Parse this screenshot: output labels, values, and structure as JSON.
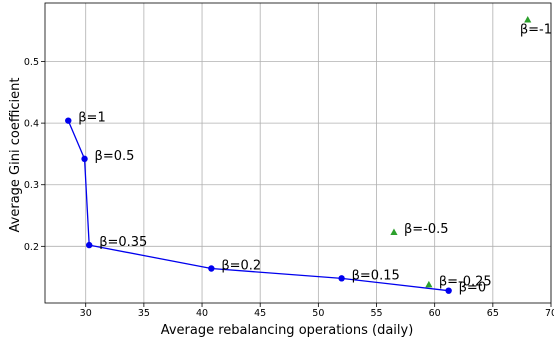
{
  "chart_data": {
    "type": "scatter",
    "title": "",
    "xlabel": "Average rebalancing operations (daily)",
    "ylabel": "Average Gini coefficient",
    "xlim": [
      26.5,
      70
    ],
    "ylim": [
      0.108,
      0.595
    ],
    "xticks": [
      30,
      35,
      40,
      45,
      50,
      55,
      60,
      65,
      70
    ],
    "yticks": [
      0.2,
      0.3,
      0.4,
      0.5
    ],
    "xtick_labels": [
      "30",
      "35",
      "40",
      "45",
      "50",
      "55",
      "60",
      "65",
      "70"
    ],
    "ytick_labels": [
      "0.2",
      "0.3",
      "0.4",
      "0.5"
    ],
    "grid": true,
    "series": [
      {
        "marker": "circle",
        "color": "#0000ee",
        "connected": true,
        "points": [
          {
            "x": 28.5,
            "y": 0.404,
            "label": "β=1"
          },
          {
            "x": 29.9,
            "y": 0.342,
            "label": "β=0.5"
          },
          {
            "x": 30.3,
            "y": 0.202,
            "label": "β=0.35"
          },
          {
            "x": 40.8,
            "y": 0.164,
            "label": "β=0.2"
          },
          {
            "x": 52.0,
            "y": 0.148,
            "label": "β=0.15"
          },
          {
            "x": 61.2,
            "y": 0.128,
            "label": "β=0"
          }
        ]
      },
      {
        "marker": "triangle",
        "color": "#2ca02c",
        "connected": false,
        "points": [
          {
            "x": 59.5,
            "y": 0.138,
            "label": "β=-0.25"
          },
          {
            "x": 56.5,
            "y": 0.223,
            "label": "β=-0.5"
          },
          {
            "x": 68.0,
            "y": 0.568,
            "label": "β=-1"
          }
        ]
      }
    ]
  },
  "colors": {
    "grid": "#b0b0b0",
    "axis": "#000000"
  }
}
